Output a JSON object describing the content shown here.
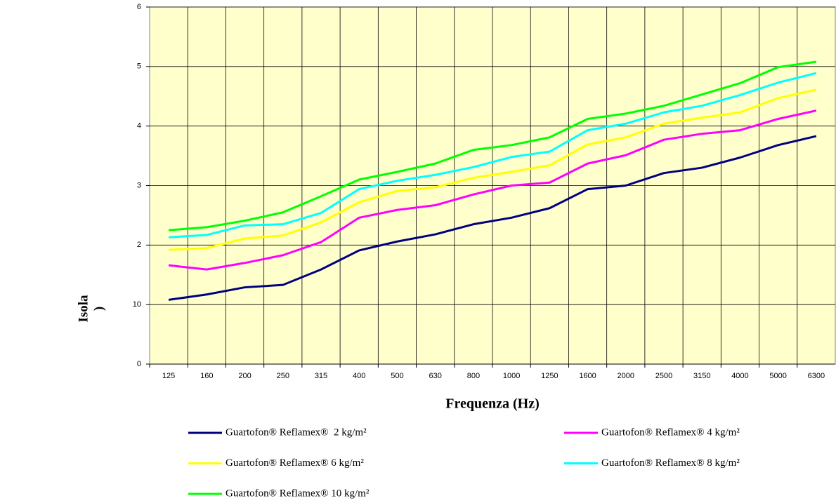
{
  "chart_data": {
    "type": "line",
    "x_label": "Frequenza (Hz)",
    "y_label": [
      "Isola",
      ")"
    ],
    "categories": [
      "125",
      "160",
      "200",
      "250",
      "315",
      "400",
      "500",
      "630",
      "800",
      "1000",
      "1250",
      "1600",
      "2000",
      "2500",
      "3150",
      "4000",
      "5000",
      "6300"
    ],
    "ylim": [
      0,
      60
    ],
    "yticks": [
      0,
      10,
      {
        "value": 20,
        "label": "2"
      },
      {
        "value": 30,
        "label": "3"
      },
      {
        "value": 40,
        "label": "4"
      },
      {
        "value": 50,
        "label": "5"
      },
      {
        "value": 60,
        "label": "6"
      }
    ],
    "grid": true,
    "background": "#ffffcc",
    "series": [
      {
        "name": "Guartofon® Reflamex®  2 kg/m²",
        "color": "#000080",
        "values": [
          10.8,
          11.7,
          12.9,
          13.3,
          15.9,
          19.1,
          20.6,
          21.8,
          23.5,
          24.6,
          26.2,
          29.4,
          30.0,
          32.1,
          33.0,
          34.7,
          36.8,
          38.3
        ]
      },
      {
        "name": "Guartofon® Reflamex® 4 kg/m²",
        "color": "#ff00ff",
        "values": [
          16.6,
          15.9,
          17.0,
          18.3,
          20.5,
          24.6,
          25.9,
          26.7,
          28.5,
          30.0,
          30.5,
          33.7,
          35.1,
          37.7,
          38.7,
          39.3,
          41.2,
          42.6
        ]
      },
      {
        "name": "Guartofon® Reflamex® 6 kg/m²",
        "color": "#ffff00",
        "values": [
          19.2,
          19.5,
          21.1,
          21.6,
          23.8,
          27.2,
          29.1,
          29.7,
          31.3,
          32.3,
          33.4,
          36.9,
          38.1,
          40.4,
          41.4,
          42.3,
          44.7,
          46.1
        ]
      },
      {
        "name": "Guartofon® Reflamex® 8 kg/m²",
        "color": "#00ffff",
        "values": [
          21.3,
          21.7,
          23.3,
          23.5,
          25.4,
          29.4,
          30.8,
          31.8,
          33.1,
          34.8,
          35.7,
          39.3,
          40.4,
          42.3,
          43.4,
          45.2,
          47.3,
          48.9
        ]
      },
      {
        "name": "Guartofon® Reflamex® 10 kg/m²",
        "color": "#00ff00",
        "values": [
          22.5,
          23.0,
          24.1,
          25.5,
          28.2,
          31.0,
          32.3,
          33.7,
          36.0,
          36.8,
          38.1,
          41.2,
          42.1,
          43.4,
          45.3,
          47.2,
          49.9,
          50.8
        ]
      }
    ]
  }
}
